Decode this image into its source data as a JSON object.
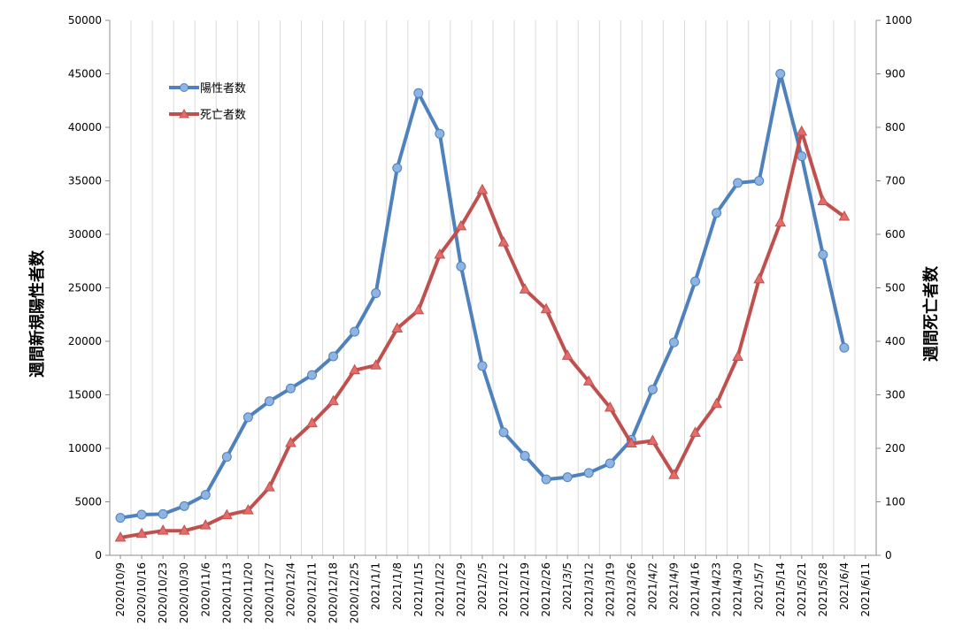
{
  "chart_data": {
    "type": "line",
    "title": "",
    "xlabel": "",
    "ylabel": "週間新規陽性者数",
    "y2label": "週間死亡者数",
    "ylim": [
      0,
      50000
    ],
    "y2lim": [
      0,
      1000
    ],
    "yticks": [
      0,
      5000,
      10000,
      15000,
      20000,
      25000,
      30000,
      35000,
      40000,
      45000,
      50000
    ],
    "y2ticks": [
      0,
      100,
      200,
      300,
      400,
      500,
      600,
      700,
      800,
      900,
      1000
    ],
    "grid": "vertical",
    "legend_position": "top-left",
    "categories": [
      "2020/10/9",
      "2020/10/16",
      "2020/10/23",
      "2020/10/30",
      "2020/11/6",
      "2020/11/13",
      "2020/11/20",
      "2020/11/27",
      "2020/12/4",
      "2020/12/11",
      "2020/12/18",
      "2020/12/25",
      "2021/1/1",
      "2021/1/8",
      "2021/1/15",
      "2021/1/22",
      "2021/1/29",
      "2021/2/5",
      "2021/2/12",
      "2021/2/19",
      "2021/2/26",
      "2021/3/5",
      "2021/3/12",
      "2021/3/19",
      "2021/3/26",
      "2021/4/2",
      "2021/4/9",
      "2021/4/16",
      "2021/4/23",
      "2021/4/30",
      "2021/5/7",
      "2021/5/14",
      "2021/5/21",
      "2021/5/28",
      "2021/6/4",
      "2021/6/11"
    ],
    "series": [
      {
        "name": "陽性者数",
        "axis": "left",
        "color": "#4F81BD",
        "marker": "circle",
        "values": [
          3500,
          3800,
          3850,
          4600,
          5650,
          9200,
          12900,
          14400,
          15600,
          16850,
          18600,
          20900,
          24500,
          36200,
          43200,
          39400,
          27000,
          17700,
          11500,
          9300,
          7100,
          7300,
          7700,
          8600,
          10800,
          15500,
          19900,
          25600,
          32000,
          34800,
          35000,
          45000,
          37300,
          28100,
          19400,
          null
        ]
      },
      {
        "name": "死亡者数",
        "axis": "right",
        "color": "#C0504D",
        "marker": "triangle",
        "values": [
          33,
          40,
          46,
          46,
          56,
          75,
          84,
          127,
          210,
          247,
          288,
          346,
          355,
          424,
          458,
          562,
          615,
          683,
          585,
          497,
          460,
          373,
          325,
          276,
          209,
          214,
          150,
          229,
          283,
          371,
          516,
          622,
          792,
          662,
          633,
          null
        ]
      }
    ]
  }
}
